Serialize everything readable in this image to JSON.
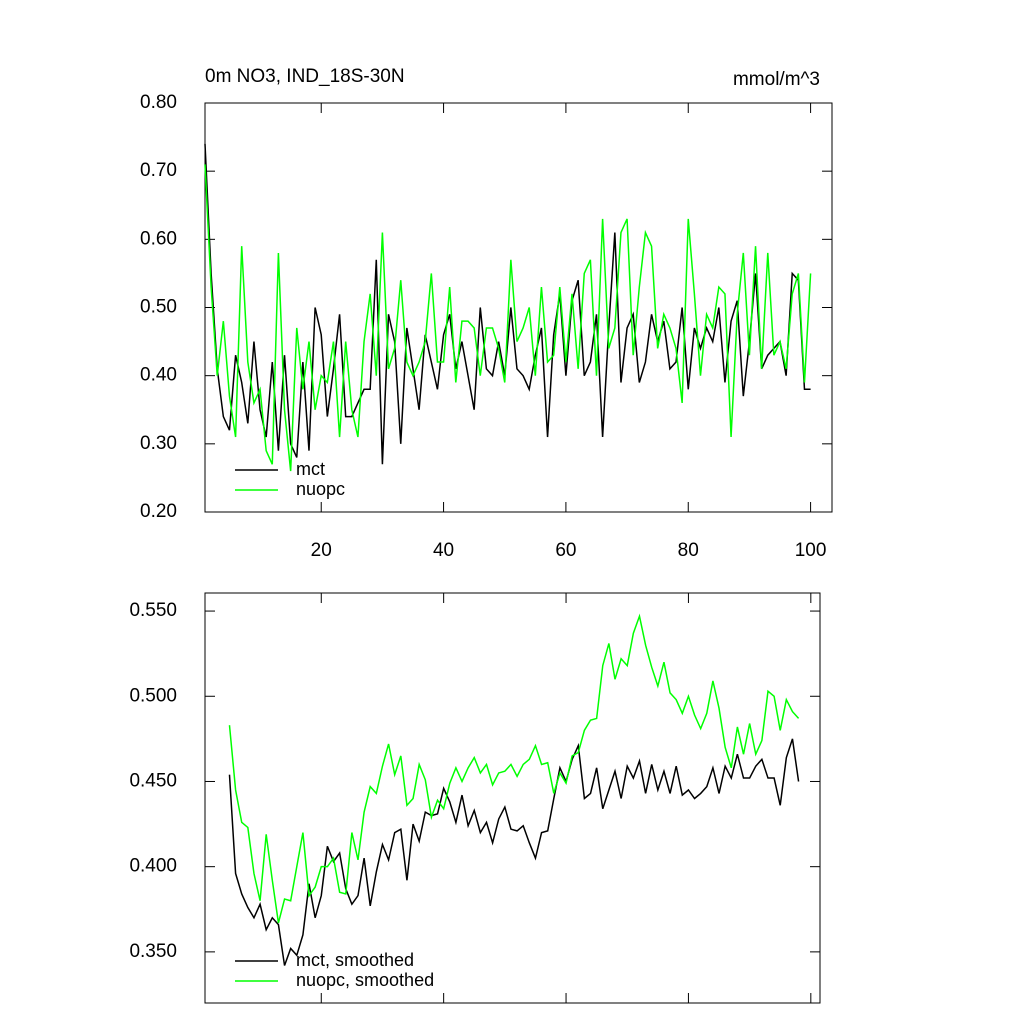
{
  "chart_data": [
    {
      "type": "line",
      "title": "0m NO3, IND_18S-30N",
      "subtitle": "mmol/m^3",
      "x": [
        1,
        2,
        3,
        4,
        5,
        6,
        7,
        8,
        9,
        10,
        11,
        12,
        13,
        14,
        15,
        16,
        17,
        18,
        19,
        20,
        21,
        22,
        23,
        24,
        25,
        26,
        27,
        28,
        29,
        30,
        31,
        32,
        33,
        34,
        35,
        36,
        37,
        38,
        39,
        40,
        41,
        42,
        43,
        44,
        45,
        46,
        47,
        48,
        49,
        50,
        51,
        52,
        53,
        54,
        55,
        56,
        57,
        58,
        59,
        60,
        61,
        62,
        63,
        64,
        65,
        66,
        67,
        68,
        69,
        70,
        71,
        72,
        73,
        74,
        75,
        76,
        77,
        78,
        79,
        80,
        81,
        82,
        83,
        84,
        85,
        86,
        87,
        88,
        89,
        90,
        91,
        92,
        93,
        94,
        95,
        96,
        97,
        98,
        99,
        100
      ],
      "series": [
        {
          "name": "mct",
          "color": "#000000",
          "values": [
            0.74,
            0.55,
            0.41,
            0.34,
            0.32,
            0.43,
            0.39,
            0.33,
            0.45,
            0.35,
            0.31,
            0.42,
            0.29,
            0.43,
            0.3,
            0.28,
            0.42,
            0.29,
            0.5,
            0.46,
            0.34,
            0.41,
            0.49,
            0.34,
            0.34,
            0.36,
            0.38,
            0.38,
            0.57,
            0.27,
            0.49,
            0.45,
            0.3,
            0.47,
            0.41,
            0.35,
            0.46,
            0.42,
            0.38,
            0.46,
            0.49,
            0.41,
            0.45,
            0.4,
            0.35,
            0.5,
            0.41,
            0.4,
            0.45,
            0.4,
            0.5,
            0.41,
            0.4,
            0.38,
            0.43,
            0.47,
            0.31,
            0.46,
            0.52,
            0.4,
            0.51,
            0.54,
            0.4,
            0.42,
            0.49,
            0.31,
            0.47,
            0.61,
            0.39,
            0.47,
            0.49,
            0.39,
            0.42,
            0.49,
            0.45,
            0.48,
            0.41,
            0.42,
            0.5,
            0.38,
            0.47,
            0.44,
            0.47,
            0.45,
            0.5,
            0.39,
            0.48,
            0.51,
            0.37,
            0.45,
            0.55,
            0.41,
            0.43,
            0.44,
            0.45,
            0.4,
            0.55,
            0.54,
            0.38,
            0.38
          ]
        },
        {
          "name": "nuopc",
          "color": "#00ff00",
          "values": [
            0.71,
            0.53,
            0.4,
            0.48,
            0.37,
            0.31,
            0.59,
            0.42,
            0.36,
            0.38,
            0.29,
            0.27,
            0.58,
            0.35,
            0.26,
            0.47,
            0.38,
            0.45,
            0.35,
            0.4,
            0.39,
            0.45,
            0.31,
            0.45,
            0.35,
            0.31,
            0.45,
            0.52,
            0.4,
            0.61,
            0.41,
            0.44,
            0.54,
            0.42,
            0.4,
            0.42,
            0.45,
            0.55,
            0.42,
            0.42,
            0.53,
            0.39,
            0.48,
            0.48,
            0.47,
            0.4,
            0.47,
            0.47,
            0.44,
            0.39,
            0.57,
            0.45,
            0.47,
            0.5,
            0.4,
            0.53,
            0.42,
            0.43,
            0.53,
            0.42,
            0.52,
            0.41,
            0.55,
            0.57,
            0.4,
            0.63,
            0.44,
            0.47,
            0.61,
            0.63,
            0.43,
            0.53,
            0.61,
            0.59,
            0.44,
            0.49,
            0.47,
            0.44,
            0.36,
            0.63,
            0.52,
            0.4,
            0.49,
            0.47,
            0.53,
            0.52,
            0.31,
            0.49,
            0.58,
            0.43,
            0.59,
            0.41,
            0.58,
            0.43,
            0.45,
            0.41,
            0.52,
            0.55,
            0.39,
            0.55
          ]
        }
      ],
      "xlim": [
        1,
        103.5
      ],
      "xticks": [
        20,
        40,
        60,
        80,
        100
      ],
      "ylim": [
        0.2,
        0.8
      ],
      "yticks": [
        {
          "value": 0.2,
          "label": "0.20"
        },
        {
          "value": 0.3,
          "label": "0.30"
        },
        {
          "value": 0.4,
          "label": "0.40"
        },
        {
          "value": 0.5,
          "label": "0.50"
        },
        {
          "value": 0.6,
          "label": "0.60"
        },
        {
          "value": 0.7,
          "label": "0.70"
        },
        {
          "value": 0.8,
          "label": "0.80"
        }
      ],
      "legend": "lower-left"
    },
    {
      "type": "line",
      "x": [
        5,
        6,
        7,
        8,
        9,
        10,
        11,
        12,
        13,
        14,
        15,
        16,
        17,
        18,
        19,
        20,
        21,
        22,
        23,
        24,
        25,
        26,
        27,
        28,
        29,
        30,
        31,
        32,
        33,
        34,
        35,
        36,
        37,
        38,
        39,
        40,
        41,
        42,
        43,
        44,
        45,
        46,
        47,
        48,
        49,
        50,
        51,
        52,
        53,
        54,
        55,
        56,
        57,
        58,
        59,
        60,
        61,
        62,
        63,
        64,
        65,
        66,
        67,
        68,
        69,
        70,
        71,
        72,
        73,
        74,
        75,
        76,
        77,
        78,
        79,
        80,
        81,
        82,
        83,
        84,
        85,
        86,
        87,
        88,
        89,
        90,
        91,
        92,
        93,
        94,
        95,
        96,
        97,
        98
      ],
      "series": [
        {
          "name": "mct, smoothed",
          "color": "#000000",
          "values": [
            0.454,
            0.396,
            0.384,
            0.376,
            0.37,
            0.378,
            0.363,
            0.37,
            0.366,
            0.342,
            0.352,
            0.348,
            0.36,
            0.39,
            0.37,
            0.383,
            0.412,
            0.403,
            0.408,
            0.387,
            0.378,
            0.383,
            0.405,
            0.377,
            0.397,
            0.413,
            0.404,
            0.42,
            0.422,
            0.392,
            0.425,
            0.415,
            0.432,
            0.43,
            0.431,
            0.446,
            0.438,
            0.426,
            0.442,
            0.424,
            0.433,
            0.42,
            0.426,
            0.414,
            0.428,
            0.435,
            0.422,
            0.421,
            0.424,
            0.414,
            0.405,
            0.42,
            0.421,
            0.44,
            0.458,
            0.45,
            0.463,
            0.471,
            0.44,
            0.443,
            0.458,
            0.434,
            0.445,
            0.456,
            0.44,
            0.459,
            0.452,
            0.462,
            0.443,
            0.46,
            0.445,
            0.456,
            0.443,
            0.459,
            0.442,
            0.445,
            0.44,
            0.443,
            0.447,
            0.458,
            0.443,
            0.459,
            0.452,
            0.466,
            0.452,
            0.452,
            0.459,
            0.463,
            0.452,
            0.452,
            0.436,
            0.464,
            0.475,
            0.45
          ]
        },
        {
          "name": "nuopc, smoothed",
          "color": "#00ff00",
          "values": [
            0.483,
            0.445,
            0.426,
            0.423,
            0.396,
            0.38,
            0.419,
            0.392,
            0.367,
            0.381,
            0.38,
            0.4,
            0.42,
            0.383,
            0.388,
            0.4,
            0.4,
            0.405,
            0.385,
            0.384,
            0.42,
            0.404,
            0.432,
            0.447,
            0.443,
            0.459,
            0.472,
            0.454,
            0.465,
            0.436,
            0.44,
            0.46,
            0.451,
            0.429,
            0.439,
            0.434,
            0.449,
            0.458,
            0.45,
            0.458,
            0.464,
            0.455,
            0.46,
            0.448,
            0.455,
            0.456,
            0.46,
            0.453,
            0.46,
            0.463,
            0.471,
            0.46,
            0.461,
            0.443,
            0.455,
            0.449,
            0.465,
            0.467,
            0.48,
            0.486,
            0.487,
            0.518,
            0.531,
            0.51,
            0.522,
            0.518,
            0.537,
            0.547,
            0.53,
            0.517,
            0.506,
            0.52,
            0.502,
            0.498,
            0.49,
            0.5,
            0.489,
            0.481,
            0.49,
            0.509,
            0.493,
            0.47,
            0.458,
            0.482,
            0.466,
            0.484,
            0.466,
            0.474,
            0.503,
            0.5,
            0.48,
            0.498,
            0.491,
            0.487
          ]
        }
      ],
      "xlim": [
        1,
        101.5
      ],
      "ylim": [
        0.32,
        0.5606
      ],
      "yticks": [
        {
          "value": 0.35,
          "label": "0.350"
        },
        {
          "value": 0.4,
          "label": "0.400"
        },
        {
          "value": 0.45,
          "label": "0.450"
        },
        {
          "value": 0.5,
          "label": "0.500"
        },
        {
          "value": 0.55,
          "label": "0.550"
        }
      ],
      "legend": "lower-left"
    }
  ]
}
